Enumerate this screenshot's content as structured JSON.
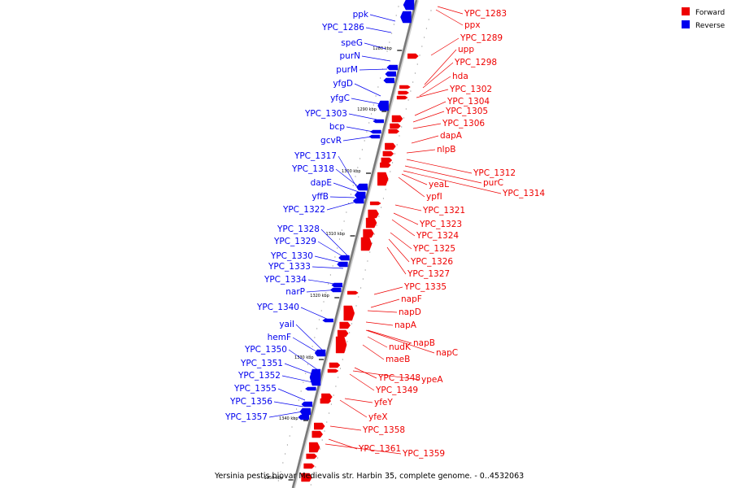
{
  "caption": "Yersinia pestis biovar Medievalis str. Harbin 35, complete genome. - 0..4532063",
  "legend": [
    {
      "label": "Forward",
      "color": "#ee0000"
    },
    {
      "label": "Reverse",
      "color": "#0000ee"
    }
  ],
  "ticks": [
    "1280 kbp",
    "1290 kbp",
    "1300 kbp",
    "1310 kbp",
    "1320 kbp",
    "1330 kbp",
    "1340 kbp",
    "1350 kbp"
  ],
  "reverse_genes": [
    "ppk",
    "YPC_1286",
    "speG",
    "purN",
    "purM",
    "yfgD",
    "yfgC",
    "YPC_1303",
    "bcp",
    "gcvR",
    "YPC_1317",
    "YPC_1318",
    "dapE",
    "yffB",
    "YPC_1322",
    "YPC_1328",
    "YPC_1329",
    "YPC_1330",
    "YPC_1333",
    "YPC_1334",
    "narP",
    "YPC_1340",
    "yaiI",
    "hemF",
    "YPC_1350",
    "YPC_1351",
    "YPC_1352",
    "YPC_1355",
    "YPC_1356",
    "YPC_1357"
  ],
  "forward_genes": [
    "YPC_1283",
    "ppx",
    "YPC_1289",
    "upp",
    "YPC_1298",
    "hda",
    "YPC_1302",
    "YPC_1304",
    "YPC_1305",
    "YPC_1306",
    "dapA",
    "nlpB",
    "YPC_1312",
    "purC",
    "YPC_1314",
    "yeaL",
    "ypfI",
    "YPC_1321",
    "YPC_1323",
    "YPC_1324",
    "YPC_1325",
    "YPC_1326",
    "YPC_1327",
    "YPC_1335",
    "napF",
    "napD",
    "napA",
    "napB",
    "nudK",
    "napC",
    "maeB",
    "YPC_1348",
    "ypeA",
    "YPC_1349",
    "yfeY",
    "yfeX",
    "YPC_1358",
    "YPC_1361",
    "YPC_1359"
  ]
}
